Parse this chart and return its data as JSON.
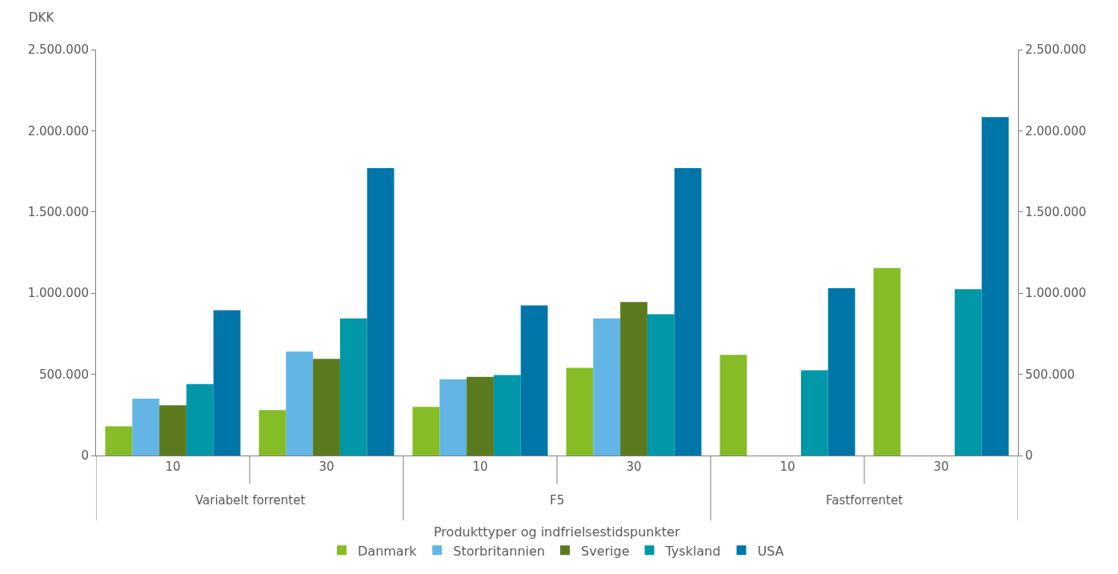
{
  "chart_data": {
    "type": "bar",
    "ylabel": "DKK",
    "xlabel": "Produkttyper og indfrielsestidspunkter",
    "categories": [
      "10",
      "30",
      "10",
      "30",
      "10",
      "30"
    ],
    "annotations": [
      "Variabelt forrentet",
      "F5",
      "Fastforrentet"
    ],
    "series": [
      {
        "name": "Danmark",
        "color": "#86bc25",
        "values": [
          180000,
          280000,
          300000,
          540000,
          620000,
          1155000
        ]
      },
      {
        "name": "Storbritannien",
        "color": "#62b5e5",
        "values": [
          350000,
          640000,
          470000,
          845000,
          null,
          null
        ]
      },
      {
        "name": "Sverige",
        "color": "#5b7b1e",
        "values": [
          310000,
          595000,
          485000,
          945000,
          null,
          null
        ]
      },
      {
        "name": "Tyskland",
        "color": "#0097a9",
        "values": [
          440000,
          845000,
          495000,
          870000,
          525000,
          1025000
        ]
      },
      {
        "name": "USA",
        "color": "#0076a8",
        "values": [
          895000,
          1770000,
          925000,
          1770000,
          1030000,
          2085000
        ]
      }
    ],
    "ylim": [
      0,
      2500000
    ],
    "yticks": [
      0,
      {
        "value": 500000,
        "label": "500.000"
      },
      {
        "value": 1000000,
        "label": "1.000.000"
      },
      {
        "value": 1500000,
        "label": "1.500.000"
      },
      {
        "value": 2000000,
        "label": "2.000.000"
      },
      {
        "value": 2500000,
        "label": "2.500.000"
      }
    ],
    "y2lim": [
      0,
      2500000
    ],
    "y2ticks": [
      0,
      {
        "value": 500000,
        "label": "500.000"
      },
      {
        "value": 1000000,
        "label": "1.000.000"
      },
      {
        "value": 1500000,
        "label": "1.500.000"
      },
      {
        "value": 2000000,
        "label": "2.000.000"
      },
      {
        "value": 2500000,
        "label": "2.500.000"
      }
    ],
    "legend": "bottom"
  }
}
